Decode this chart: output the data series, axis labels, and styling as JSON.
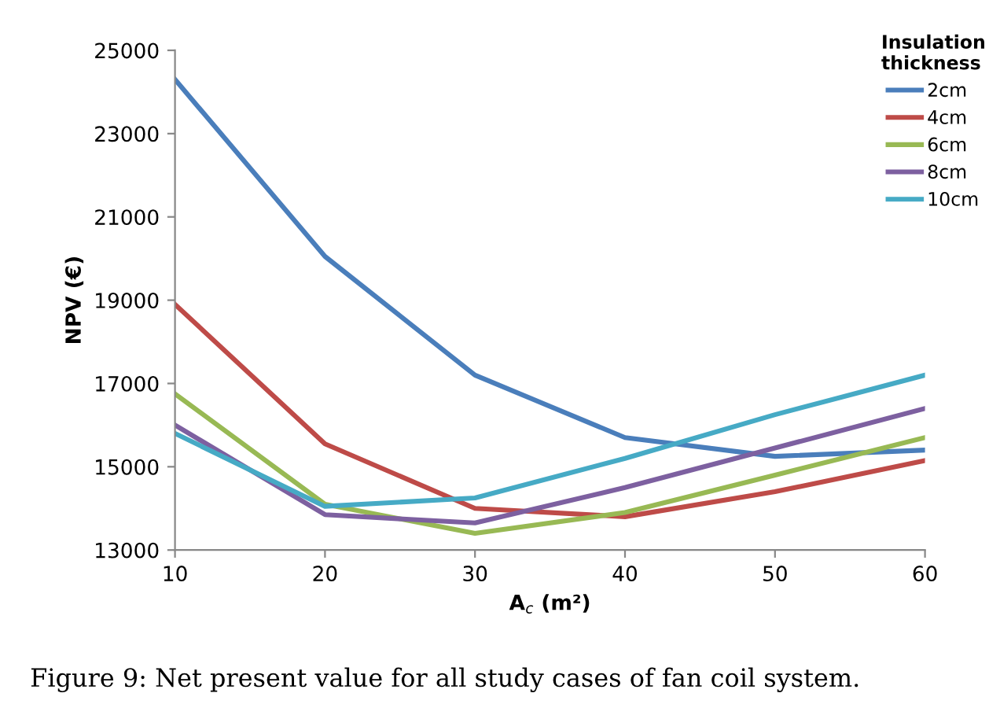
{
  "chart_data": {
    "type": "line",
    "xlabel": "A$_{c}$ (m²)",
    "ylabel": "NPV (€)",
    "legend_title": "Insulation\nthickness",
    "annotations": [
      "Figure 9: Net present value for all study cases of fan coil system."
    ],
    "x": [
      10,
      20,
      30,
      40,
      50,
      60
    ],
    "xlim": [
      10,
      60
    ],
    "xticks": [
      10,
      20,
      30,
      40,
      50,
      60
    ],
    "ylim": [
      13000,
      25000
    ],
    "yticks": [
      13000,
      15000,
      17000,
      19000,
      21000,
      23000,
      25000
    ],
    "grid": false,
    "legend": "top right",
    "marker": "none",
    "line_style": "solid",
    "series": [
      {
        "name": "2cm",
        "color": "#4a7ebb",
        "values": [
          24300,
          20050,
          17200,
          15700,
          15250,
          15400
        ]
      },
      {
        "name": "4cm",
        "color": "#be4b48",
        "values": [
          18900,
          15550,
          14000,
          13800,
          14400,
          15150
        ]
      },
      {
        "name": "6cm",
        "color": "#98b954",
        "values": [
          16750,
          14100,
          13400,
          13900,
          14800,
          15700
        ]
      },
      {
        "name": "8cm",
        "color": "#7d60a0",
        "values": [
          16000,
          13850,
          13650,
          14500,
          15450,
          16400
        ]
      },
      {
        "name": "10cm",
        "color": "#46aac5",
        "values": [
          15800,
          14050,
          14250,
          15200,
          16250,
          17200
        ]
      }
    ]
  }
}
